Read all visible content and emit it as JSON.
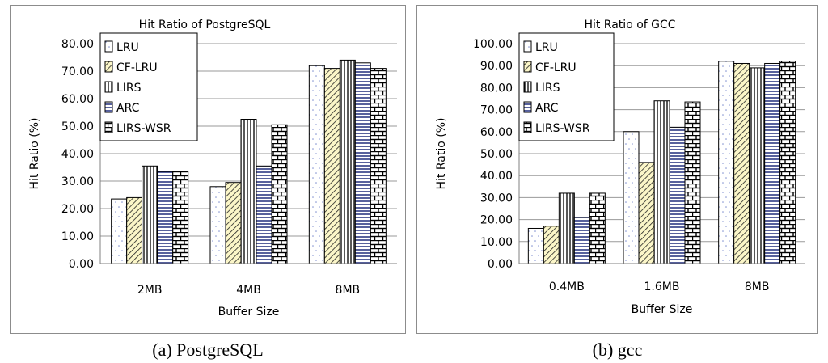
{
  "captions": {
    "a": "(a) PostgreSQL",
    "b": "(b) gcc"
  },
  "chart_data": [
    {
      "type": "bar",
      "title": "Hit Ratio of PostgreSQL",
      "xlabel": "Buffer Size",
      "ylabel": "Hit Ratio (%)",
      "categories": [
        "2MB",
        "4MB",
        "8MB"
      ],
      "ylim": [
        0,
        80
      ],
      "yticks": [
        "0.00",
        "10.00",
        "20.00",
        "30.00",
        "40.00",
        "50.00",
        "60.00",
        "70.00",
        "80.00"
      ],
      "grid": true,
      "legend": "top-left",
      "series": [
        {
          "name": "LRU",
          "values": [
            23.5,
            28.0,
            72.0
          ]
        },
        {
          "name": "CF-LRU",
          "values": [
            24.0,
            29.5,
            71.0
          ]
        },
        {
          "name": "LIRS",
          "values": [
            35.5,
            52.5,
            74.0
          ]
        },
        {
          "name": "ARC",
          "values": [
            33.5,
            35.5,
            73.0
          ]
        },
        {
          "name": "LIRS-WSR",
          "values": [
            33.5,
            50.5,
            71.0
          ]
        }
      ]
    },
    {
      "type": "bar",
      "title": "Hit Ratio of GCC",
      "xlabel": "Buffer Size",
      "ylabel": "Hit Ratio (%)",
      "categories": [
        "0.4MB",
        "1.6MB",
        "8MB"
      ],
      "ylim": [
        0,
        100
      ],
      "yticks": [
        "0.00",
        "10.00",
        "20.00",
        "30.00",
        "40.00",
        "50.00",
        "60.00",
        "70.00",
        "80.00",
        "90.00",
        "100.00"
      ],
      "grid": true,
      "legend": "top-left",
      "series": [
        {
          "name": "LRU",
          "values": [
            16.0,
            60.0,
            92.0
          ]
        },
        {
          "name": "CF-LRU",
          "values": [
            17.0,
            46.0,
            91.0
          ]
        },
        {
          "name": "LIRS",
          "values": [
            32.0,
            74.0,
            89.0
          ]
        },
        {
          "name": "ARC",
          "values": [
            21.0,
            62.0,
            91.0
          ]
        },
        {
          "name": "LIRS-WSR",
          "values": [
            32.0,
            73.5,
            92.0
          ]
        }
      ]
    }
  ]
}
